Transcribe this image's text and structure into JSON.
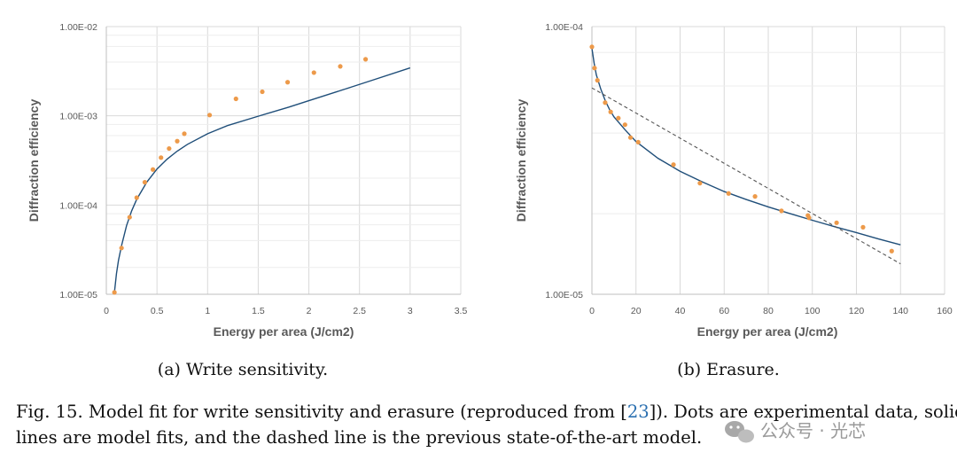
{
  "chart_data": [
    {
      "type": "scatter",
      "panel": "a",
      "xlabel": "Energy per area (J/cm2)",
      "ylabel": "Diffraction efficiency",
      "xlim": [
        0,
        3.5
      ],
      "ylim": [
        1e-05,
        0.01
      ],
      "yscale": "log",
      "xticks": [
        "0",
        "0.5",
        "1",
        "1.5",
        "2",
        "2.5",
        "3",
        "3.5"
      ],
      "yticks": [
        "1.00E-05",
        "1.00E-04",
        "1.00E-03",
        "1.00E-02"
      ],
      "grid": true,
      "series": [
        {
          "kind": "points",
          "x": [
            0.08,
            0.15,
            0.23,
            0.3,
            0.38,
            0.46,
            0.54,
            0.62,
            0.7,
            0.77,
            1.02,
            1.28,
            1.54,
            1.79,
            2.05,
            2.31,
            2.56
          ],
          "y": [
            1.05e-05,
            3.3e-05,
            7.3e-05,
            0.000121,
            0.00018,
            0.00025,
            0.00034,
            0.00043,
            0.00052,
            0.00063,
            0.00102,
            0.00155,
            0.00186,
            0.00238,
            0.00305,
            0.00358,
            0.0043
          ]
        },
        {
          "kind": "model_fit",
          "x": [
            0.08,
            0.1,
            0.12,
            0.15,
            0.2,
            0.25,
            0.3,
            0.4,
            0.5,
            0.6,
            0.7,
            0.8,
            1.0,
            1.2,
            1.5,
            1.8,
            2.0,
            2.3,
            2.6,
            3.0
          ],
          "y": [
            1.05e-05,
            1.7e-05,
            2.4e-05,
            3.5e-05,
            5.9e-05,
            8.6e-05,
            0.000116,
            0.000181,
            0.000253,
            0.000327,
            0.000402,
            0.000478,
            0.00063,
            0.00078,
            0.00099,
            0.00125,
            0.00148,
            0.0019,
            0.00245,
            0.00345
          ]
        }
      ]
    },
    {
      "type": "scatter",
      "panel": "b",
      "xlabel": "Energy per area (J/cm2)",
      "ylabel": "Diffraction efficiency",
      "xlim": [
        0,
        160
      ],
      "ylim": [
        1e-05,
        0.0001
      ],
      "yscale": "log",
      "xticks": [
        "0",
        "20",
        "40",
        "60",
        "80",
        "100",
        "120",
        "140",
        "160"
      ],
      "yticks": [
        "1.00E-05",
        "1.00E-04"
      ],
      "grid": true,
      "series": [
        {
          "kind": "points",
          "x": [
            0,
            1.2,
            2.5,
            6,
            8.5,
            12,
            15,
            17.5,
            21,
            37,
            49,
            62,
            74,
            86,
            98,
            98.5,
            111,
            123,
            136
          ],
          "y": [
            8.4e-05,
            7e-05,
            6.3e-05,
            5.2e-05,
            4.8e-05,
            4.55e-05,
            4.3e-05,
            3.85e-05,
            3.7e-05,
            3.05e-05,
            2.6e-05,
            2.38e-05,
            2.32e-05,
            2.05e-05,
            1.97e-05,
            1.93e-05,
            1.85e-05,
            1.78e-05,
            1.45e-05
          ]
        },
        {
          "kind": "model_fit",
          "x": [
            0,
            1,
            2,
            4,
            6,
            8,
            10,
            15,
            20,
            30,
            40,
            50,
            60,
            70,
            80,
            90,
            100,
            110,
            120,
            130,
            140
          ],
          "y": [
            8.3e-05,
            7.3e-05,
            6.6e-05,
            5.85e-05,
            5.3e-05,
            4.9e-05,
            4.6e-05,
            4.12e-05,
            3.72e-05,
            3.22e-05,
            2.88e-05,
            2.63e-05,
            2.42e-05,
            2.26e-05,
            2.12e-05,
            2e-05,
            1.89e-05,
            1.79e-05,
            1.7e-05,
            1.61e-05,
            1.53e-05
          ]
        },
        {
          "kind": "prior_model",
          "x": [
            0,
            140
          ],
          "y": [
            5.9e-05,
            1.3e-05
          ]
        }
      ]
    }
  ],
  "captions": {
    "a": "(a) Write sensitivity.",
    "b": "(b) Erasure."
  },
  "figure_caption": {
    "line1_before": "Fig. 15.   Model fit for write sensitivity and erasure (reproduced from [",
    "line1_ref": "23",
    "line1_after": "]). Dots are experimental data, solid",
    "line2": "lines are model fits, and the dashed line is the previous state-of-the-art model."
  },
  "watermark": "公众号 · 光芯",
  "colors": {
    "points": "#ED9A4A",
    "fit": "#1F4E79",
    "prior": "#555555",
    "grid": "#D9D9D9",
    "axis": "#BFBFBF"
  }
}
